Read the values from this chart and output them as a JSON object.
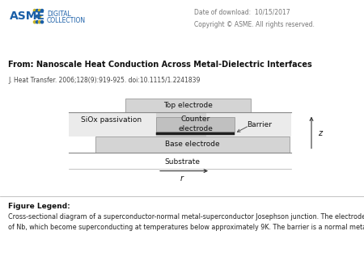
{
  "white": "#ffffff",
  "light_gray": "#d4d4d4",
  "mid_gray": "#c0c0c0",
  "header_bg": "#e2e2e2",
  "barrier_color": "#222222",
  "line_color": "#888888",
  "text_dark": "#111111",
  "text_mid": "#444444",
  "text_light": "#666666",
  "date_text": "Date of download:  10/15/2017",
  "copyright_text": "Copyright © ASME. All rights reserved.",
  "title_text": "From: Nanoscale Heat Conduction Across Metal-Dielectric Interfaces",
  "journal_text": "J. Heat Transfer. 2006;128(9):919-925. doi:10.1115/1.2241839",
  "top_electrode_label": "Top electrode",
  "siox_label": "SiOx passivation",
  "counter_label": "Counter\nelectrode",
  "barrier_label": "Barrier",
  "base_label": "Base electrode",
  "substrate_label": "Substrate",
  "z_label": "z",
  "r_label": "r",
  "legend_title": "Figure Legend:",
  "legend_body": "Cross-sectional diagram of a superconductor-normal metal-superconductor Josephson junction. The electrodes are typically made\nof Nb, which become superconducting at temperatures below approximately 9K. The barrier is a normal metal."
}
